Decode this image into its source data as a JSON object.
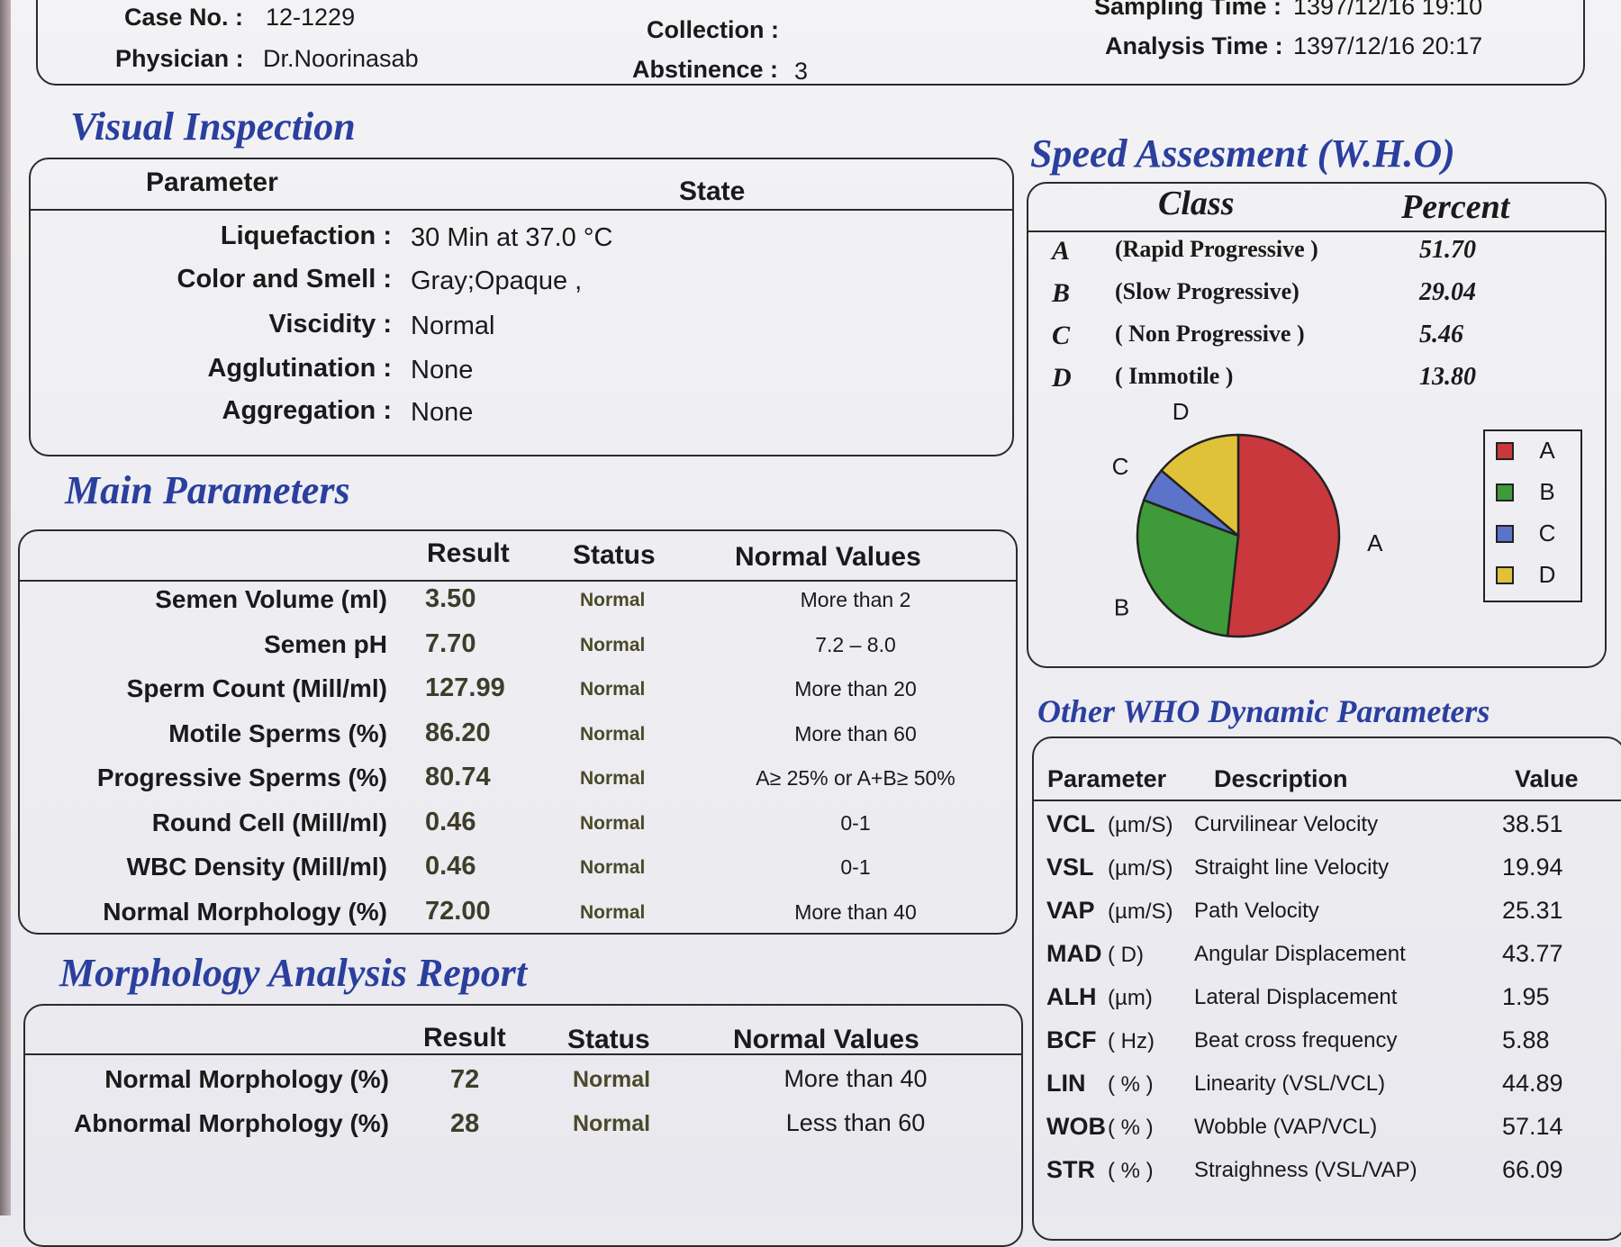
{
  "header": {
    "case_label": "Case No. :",
    "case_value": "12-1229",
    "physician_label": "Physician :",
    "physician_value": "Dr.Noorinasab",
    "collection_label": "Collection :",
    "abstinence_label": "Abstinence :",
    "abstinence_value": "3",
    "sampling_label": "Sampling Time :",
    "sampling_value": "1397/12/16 19:10",
    "analysis_label": "Analysis Time :",
    "analysis_value": "1397/12/16 20:17"
  },
  "visual": {
    "title": "Visual Inspection",
    "col_parameter": "Parameter",
    "col_state": "State",
    "rows": [
      {
        "label": "Liquefaction :",
        "value": "30  Min at  37.0 °C"
      },
      {
        "label": "Color and Smell :",
        "value": "Gray;Opaque  ,"
      },
      {
        "label": "Viscidity :",
        "value": "Normal"
      },
      {
        "label": "Agglutination :",
        "value": "None"
      },
      {
        "label": "Aggregation :",
        "value": "None"
      }
    ]
  },
  "main": {
    "title": "Main Parameters",
    "col_result": "Result",
    "col_status": "Status",
    "col_normal": "Normal Values",
    "rows": [
      {
        "label": "Semen Volume (ml)",
        "result": "3.50",
        "status": "Normal",
        "normal": "More than  2"
      },
      {
        "label": "Semen pH",
        "result": "7.70",
        "status": "Normal",
        "normal": "7.2 – 8.0"
      },
      {
        "label": "Sperm Count (Mill/ml)",
        "result": "127.99",
        "status": "Normal",
        "normal": "More than  20"
      },
      {
        "label": "Motile Sperms (%)",
        "result": "86.20",
        "status": "Normal",
        "normal": "More than 60"
      },
      {
        "label": "Progressive Sperms (%)",
        "result": "80.74",
        "status": "Normal",
        "normal": "A≥ 25% or A+B≥ 50%"
      },
      {
        "label": "Round Cell (Mill/ml)",
        "result": "0.46",
        "status": "Normal",
        "normal": "0-1"
      },
      {
        "label": "WBC Density (Mill/ml)",
        "result": "0.46",
        "status": "Normal",
        "normal": "0-1"
      },
      {
        "label": "Normal Morphology (%)",
        "result": "72.00",
        "status": "Normal",
        "normal": "More than  40"
      }
    ]
  },
  "morph": {
    "title": "Morphology Analysis Report",
    "col_result": "Result",
    "col_status": "Status",
    "col_normal": "Normal Values",
    "rows": [
      {
        "label": "Normal Morphology (%)",
        "result": "72",
        "status": "Normal",
        "normal": "More than  40"
      },
      {
        "label": "Abnormal Morphology (%)",
        "result": "28",
        "status": "Normal",
        "normal": "Less than  60"
      }
    ]
  },
  "speed": {
    "title": "Speed Assesment (W.H.O)",
    "col_class": "Class",
    "col_percent": "Percent",
    "rows": [
      {
        "class": "A",
        "desc": "(Rapid Progressive )",
        "percent": "51.70"
      },
      {
        "class": "B",
        "desc": "(Slow Progressive)",
        "percent": "29.04"
      },
      {
        "class": "C",
        "desc": "( Non Progressive )",
        "percent": "5.46"
      },
      {
        "class": "D",
        "desc": "( Immotile )",
        "percent": "13.80"
      }
    ]
  },
  "chart_data": {
    "type": "pie",
    "categories": [
      "A",
      "B",
      "C",
      "D"
    ],
    "values": [
      51.7,
      29.04,
      5.46,
      13.8
    ],
    "colors": [
      "#c8383c",
      "#3f9a3a",
      "#5b74c9",
      "#dfc23a"
    ],
    "legend_position": "right",
    "slice_labels": [
      "A",
      "B",
      "C",
      "D"
    ]
  },
  "other": {
    "title": "Other WHO Dynamic Parameters",
    "col_parameter": "Parameter",
    "col_description": "Description",
    "col_value": "Value",
    "rows": [
      {
        "param": "VCL",
        "unit": "(µm/S)",
        "desc": "Curvilinear Velocity",
        "value": "38.51"
      },
      {
        "param": "VSL",
        "unit": "(µm/S)",
        "desc": "Straight line Velocity",
        "value": "19.94"
      },
      {
        "param": "VAP",
        "unit": "(µm/S)",
        "desc": "Path Velocity",
        "value": "25.31"
      },
      {
        "param": "MAD",
        "unit": "( D)",
        "desc": "Angular Displacement",
        "value": "43.77"
      },
      {
        "param": "ALH",
        "unit": "(µm)",
        "desc": "Lateral Displacement",
        "value": "1.95"
      },
      {
        "param": "BCF",
        "unit": "( Hz)",
        "desc": "Beat cross frequency",
        "value": "5.88"
      },
      {
        "param": "LIN",
        "unit": "( % )",
        "desc": "Linearity (VSL/VCL)",
        "value": "44.89"
      },
      {
        "param": "WOB",
        "unit": "( % )",
        "desc": "Wobble  (VAP/VCL)",
        "value": "57.14"
      },
      {
        "param": "STR",
        "unit": "( % )",
        "desc": "Straighness (VSL/VAP)",
        "value": "66.09"
      }
    ]
  }
}
